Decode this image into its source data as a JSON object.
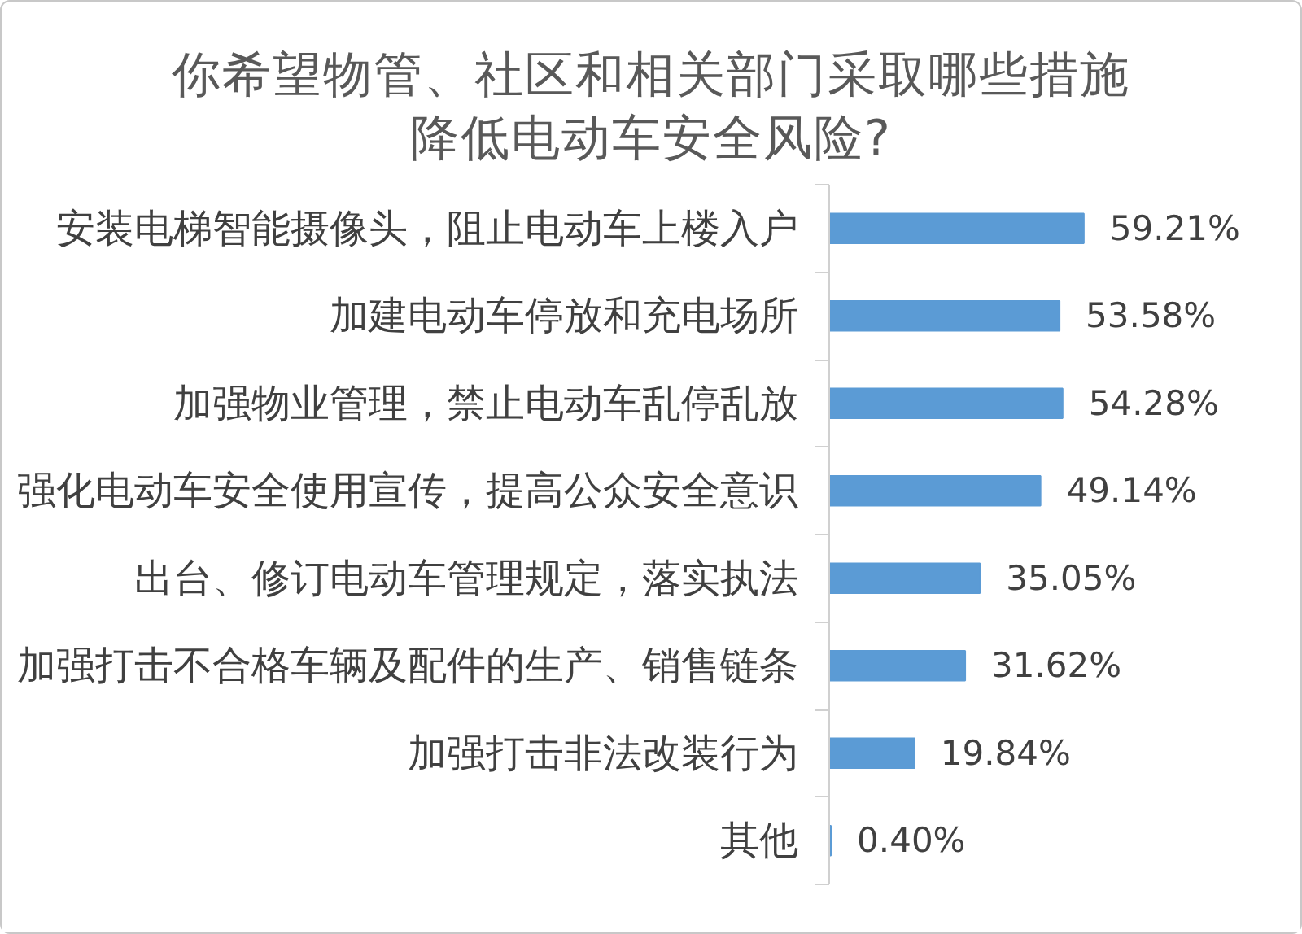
{
  "chart_data": {
    "type": "bar",
    "orientation": "horizontal",
    "title": "你希望物管、社区和相关部门采取哪些措施降低电动车安全风险?",
    "categories": [
      "安装电梯智能摄像头，阻止电动车上楼入户",
      "加建电动车停放和充电场所",
      "加强物业管理，禁止电动车乱停乱放",
      "强化电动车安全使用宣传，提高公众安全意识",
      "出台、修订电动车管理规定，落实执法",
      "加强打击不合格车辆及配件的生产、销售链条",
      "加强打击非法改装行为",
      "其他"
    ],
    "values": [
      59.21,
      53.58,
      54.28,
      49.14,
      35.05,
      31.62,
      19.84,
      0.4
    ],
    "value_labels": [
      "59.21%",
      "53.58%",
      "54.28%",
      "49.14%",
      "35.05%",
      "31.62%",
      "19.84%",
      "0.40%"
    ],
    "color": "#5b9bd5",
    "tick_labels": "y"
  }
}
